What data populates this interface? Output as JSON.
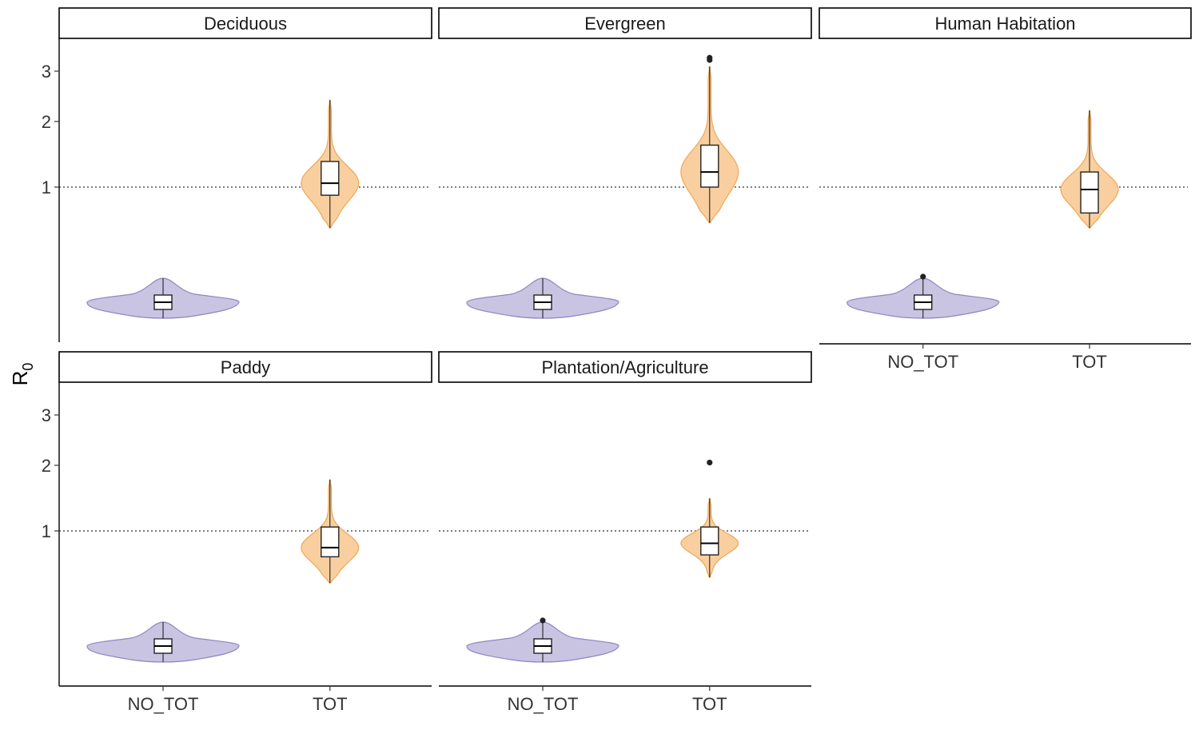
{
  "chart_data": {
    "type": "violin",
    "ylabel_main": "R",
    "ylabel_sub": "0",
    "categories": [
      "NO_TOT",
      "TOT"
    ],
    "y_ticks": [
      1,
      2,
      3
    ],
    "reference_line": 1,
    "colors": {
      "NO_TOT": "#c9c4e2",
      "TOT": "#f9cf9f",
      "NO_TOT_edge": "#8f86c2",
      "TOT_edge": "#eda85a"
    },
    "panels": [
      {
        "name": "Deciduous",
        "groups": [
          {
            "category": "NO_TOT",
            "min": 0.2,
            "q1": 0.22,
            "median": 0.23,
            "q3": 0.25,
            "max": 0.28,
            "outliers": []
          },
          {
            "category": "TOT",
            "min": 0.55,
            "q1": 0.9,
            "median": 1.05,
            "q3": 1.35,
            "max": 2.4,
            "outliers": []
          }
        ]
      },
      {
        "name": "Evergreen",
        "groups": [
          {
            "category": "NO_TOT",
            "min": 0.2,
            "q1": 0.22,
            "median": 0.235,
            "q3": 0.25,
            "max": 0.28,
            "outliers": []
          },
          {
            "category": "TOT",
            "min": 0.6,
            "q1": 1.0,
            "median": 1.2,
            "q3": 1.6,
            "max": 3.1,
            "outliers": [
              3.25,
              3.3
            ]
          }
        ]
      },
      {
        "name": "Human Habitation",
        "groups": [
          {
            "category": "NO_TOT",
            "min": 0.2,
            "q1": 0.22,
            "median": 0.23,
            "q3": 0.24,
            "max": 0.27,
            "outliers": [
              0.28
            ]
          },
          {
            "category": "TOT",
            "min": 0.55,
            "q1": 0.7,
            "median": 0.97,
            "q3": 1.2,
            "max": 2.2,
            "outliers": []
          }
        ]
      },
      {
        "name": "Paddy",
        "groups": [
          {
            "category": "NO_TOT",
            "min": 0.2,
            "q1": 0.22,
            "median": 0.23,
            "q3": 0.24,
            "max": 0.27,
            "outliers": []
          },
          {
            "category": "TOT",
            "min": 0.45,
            "q1": 0.7,
            "median": 0.8,
            "q3": 1.05,
            "max": 1.75,
            "outliers": []
          }
        ]
      },
      {
        "name": "Plantation/Agriculture",
        "groups": [
          {
            "category": "NO_TOT",
            "min": 0.2,
            "q1": 0.22,
            "median": 0.23,
            "q3": 0.245,
            "max": 0.27,
            "outliers": [
              0.29
            ]
          },
          {
            "category": "TOT",
            "min": 0.5,
            "q1": 0.72,
            "median": 0.85,
            "q3": 1.05,
            "max": 1.45,
            "outliers": [
              2.05
            ]
          }
        ]
      }
    ]
  }
}
